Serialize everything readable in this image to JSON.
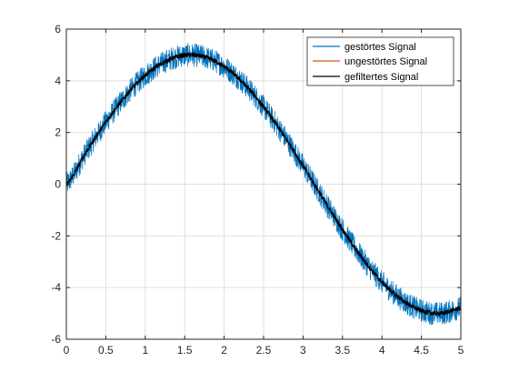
{
  "chart_data": {
    "type": "line",
    "title": "",
    "xlabel": "",
    "ylabel": "",
    "xlim": [
      0,
      5
    ],
    "ylim": [
      -6,
      6
    ],
    "xticks": [
      0,
      0.5,
      1,
      1.5,
      2,
      2.5,
      3,
      3.5,
      4,
      4.5,
      5
    ],
    "xtick_labels": [
      "0",
      "0.5",
      "1",
      "1.5",
      "2",
      "2.5",
      "3",
      "3.5",
      "4",
      "4.5",
      "5"
    ],
    "yticks": [
      -6,
      -4,
      -2,
      0,
      2,
      4,
      6
    ],
    "ytick_labels": [
      "-6",
      "-4",
      "-2",
      "0",
      "2",
      "4",
      "6"
    ],
    "grid": true,
    "legend_position": "top-right",
    "x": [
      0,
      0.25,
      0.5,
      0.75,
      1,
      1.25,
      1.5,
      1.75,
      2,
      2.25,
      2.5,
      2.75,
      3,
      3.25,
      3.5,
      3.75,
      4,
      4.25,
      4.5,
      4.75,
      5
    ],
    "series": [
      {
        "name": "gestörtes Signal",
        "color": "#0072BD",
        "values": [
          0,
          1.24,
          2.4,
          3.41,
          4.21,
          4.74,
          4.99,
          4.92,
          4.55,
          3.89,
          2.99,
          1.91,
          0.71,
          -0.54,
          -1.75,
          -2.86,
          -3.78,
          -4.47,
          -4.89,
          -5.0,
          -4.79
        ],
        "noise_band": 0.45
      },
      {
        "name": "ungestörtes Signal",
        "color": "#D95319",
        "values": [
          0,
          1.24,
          2.4,
          3.41,
          4.21,
          4.74,
          4.99,
          4.92,
          4.55,
          3.89,
          2.99,
          1.91,
          0.71,
          -0.54,
          -1.75,
          -2.86,
          -3.78,
          -4.47,
          -4.89,
          -5.0,
          -4.79
        ]
      },
      {
        "name": "gefiltertes Signal",
        "color": "#000000",
        "values": [
          0,
          1.24,
          2.4,
          3.41,
          4.21,
          4.74,
          4.99,
          4.92,
          4.55,
          3.89,
          2.99,
          1.91,
          0.71,
          -0.54,
          -1.75,
          -2.86,
          -3.78,
          -4.47,
          -4.89,
          -5.0,
          -4.79
        ]
      }
    ]
  }
}
